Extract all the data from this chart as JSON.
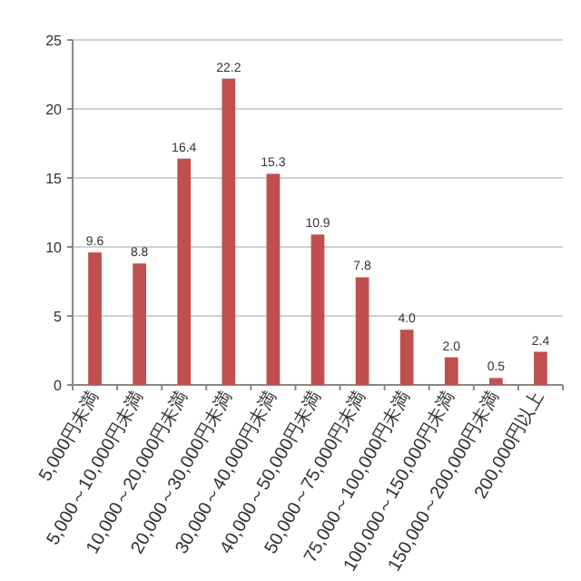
{
  "chart_data": {
    "type": "bar",
    "categories": [
      "5,000円未満",
      "5,000～10,000円未満",
      "10,000～20,000円未満",
      "20,000～30,000円未満",
      "30,000～40,000円未満",
      "40,000～50,000円未満",
      "50,000～75,000円未満",
      "75,000～100,000円未満",
      "100,000～150,000円未満",
      "150,000～200,000円未満",
      "200,000円以上"
    ],
    "values": [
      9.6,
      8.8,
      16.4,
      22.2,
      15.3,
      10.9,
      7.8,
      4.0,
      2.0,
      0.5,
      2.4
    ],
    "color": "#c0504d",
    "value_labels": [
      "9.6",
      "8.8",
      "16.4",
      "22.2",
      "15.3",
      "10.9",
      "7.8",
      "4.0",
      "2.0",
      "0.5",
      "2.4"
    ],
    "ylim": [
      0,
      25
    ],
    "yticks": [
      0,
      5,
      10,
      15,
      20,
      25
    ],
    "grid": "y"
  }
}
